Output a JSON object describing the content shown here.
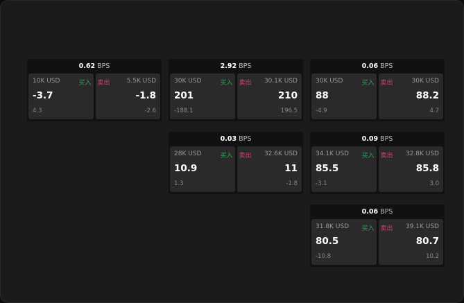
{
  "widgets": [
    {
      "bps": "0.62",
      "buy": {
        "size": "10K USD",
        "price": "-3.7",
        "change": "4.3"
      },
      "sell": {
        "size": "5.5K USD",
        "price": "-1.8",
        "change": "-2.6"
      }
    },
    {
      "bps": "2.92",
      "buy": {
        "size": "30K USD",
        "price": "201",
        "change": "-188.1"
      },
      "sell": {
        "size": "30.1K USD",
        "price": "210",
        "change": "196.5"
      }
    },
    {
      "bps": "0.06",
      "buy": {
        "size": "30K USD",
        "price": "88",
        "change": "-4.9"
      },
      "sell": {
        "size": "30K USD",
        "price": "88.2",
        "change": "4.7"
      }
    },
    {
      "bps": "0.03",
      "buy": {
        "size": "28K USD",
        "price": "10.9",
        "change": "1.3"
      },
      "sell": {
        "size": "32.6K USD",
        "price": "11",
        "change": "-1.8"
      }
    },
    {
      "bps": "0.09",
      "buy": {
        "size": "34.1K USD",
        "price": "85.5",
        "change": "-3.1"
      },
      "sell": {
        "size": "32.8K USD",
        "price": "85.8",
        "change": "3.0"
      }
    },
    {
      "bps": "0.06",
      "buy": {
        "size": "31.8K USD",
        "price": "80.5",
        "change": "-10.8"
      },
      "sell": {
        "size": "39.1K USD",
        "price": "80.7",
        "change": "10.2"
      }
    }
  ],
  "labels": {
    "bps_unit": "BPS",
    "buy": "买入",
    "sell": "卖出"
  },
  "colors": {
    "buy": "#2fa35a",
    "sell": "#d8406a"
  }
}
